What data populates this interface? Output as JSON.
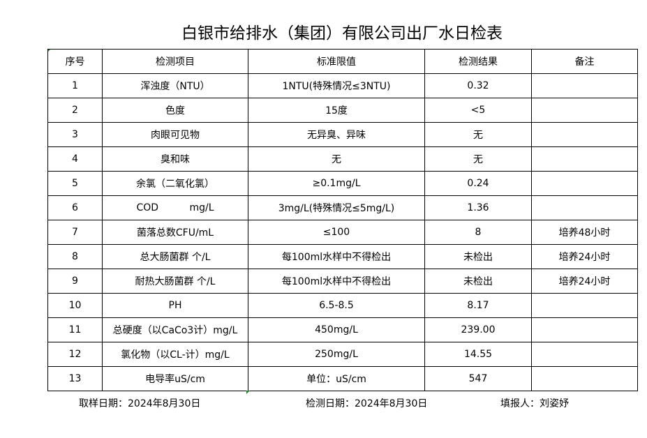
{
  "title": "白银市给排水（集团）有限公司出厂水日检表",
  "columns": [
    "序号",
    "检测项目",
    "标准限值",
    "检测结果",
    "备注"
  ],
  "rows": [
    [
      "1",
      "浑浊度（NTU）",
      "1NTU(特殊情况≤3NTU)",
      "0.32",
      ""
    ],
    [
      "2",
      "色度",
      "15度",
      "<5",
      ""
    ],
    [
      "3",
      "肉眼可见物",
      "无异臭、异味",
      "无",
      ""
    ],
    [
      "4",
      "臭和味",
      "无",
      "无",
      ""
    ],
    [
      "5",
      "余氯（二氧化氯）",
      "≥0.1mg/L",
      "0.24",
      ""
    ],
    [
      "6",
      "COD          mg/L",
      "3mg/L(特殊情况≤5mg/L)",
      "1.36",
      ""
    ],
    [
      "7",
      "菌落总数CFU/mL",
      "≤100",
      "8",
      "培养48小时"
    ],
    [
      "8",
      "总大肠菌群 个/L",
      "每100ml水样中不得检出",
      "未检出",
      "培养24小时"
    ],
    [
      "9",
      "耐热大肠菌群 个/L",
      "每100ml水样中不得检出",
      "未检出",
      "培养24小时"
    ],
    [
      "10",
      "PH",
      "6.5-8.5",
      "8.17",
      ""
    ],
    [
      "11",
      "总硬度（以CaCo3计）mg/L",
      "450mg/L",
      "239.00",
      ""
    ],
    [
      "12",
      "氯化物（以CL-计）mg/L",
      "250mg/L",
      "14.55",
      ""
    ],
    [
      "13",
      "电导率uS/cm",
      "单位：uS/cm",
      "547",
      ""
    ]
  ],
  "footer": {
    "sampling_date": "取样日期：2024年8月30日",
    "test_date": "检测日期：2024年8月30日",
    "reporter": "填报人：刘姿妤"
  }
}
